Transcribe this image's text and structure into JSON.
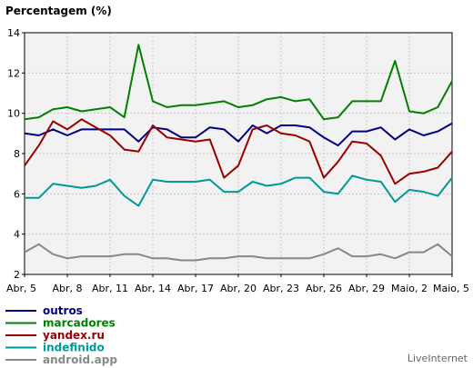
{
  "chart_data": {
    "type": "line",
    "title": "Percentagem (%)",
    "xlabel": "",
    "ylabel": "",
    "ylim": [
      2,
      14
    ],
    "yticks": [
      2,
      4,
      6,
      8,
      10,
      12,
      14
    ],
    "grid": true,
    "legend_position": "bottom-left",
    "x_tick_labels": [
      "Abr, 5",
      "Abr, 8",
      "Abr, 11",
      "Abr, 14",
      "Abr, 17",
      "Abr, 20",
      "Abr, 23",
      "Abr, 26",
      "Abr, 29",
      "Maio, 2",
      "Maio, 5"
    ],
    "series": [
      {
        "name": "outros",
        "color": "#000080",
        "values": [
          9.0,
          8.9,
          9.2,
          8.9,
          9.2,
          9.2,
          9.2,
          9.2,
          8.6,
          9.3,
          9.2,
          8.8,
          8.8,
          9.3,
          9.2,
          8.6,
          9.4,
          9.0,
          9.4,
          9.4,
          9.3,
          8.8,
          8.4,
          9.1,
          9.1,
          9.3,
          8.7,
          9.2,
          8.9,
          9.1,
          9.5
        ]
      },
      {
        "name": "marcadores",
        "color": "#008000",
        "values": [
          9.7,
          9.8,
          10.2,
          10.3,
          10.1,
          10.2,
          10.3,
          9.8,
          13.4,
          10.6,
          10.3,
          10.4,
          10.4,
          10.5,
          10.6,
          10.3,
          10.4,
          10.7,
          10.8,
          10.6,
          10.7,
          9.7,
          9.8,
          10.6,
          10.6,
          10.6,
          12.6,
          10.1,
          10.0,
          10.3,
          11.6
        ]
      },
      {
        "name": "yandex.ru",
        "color": "#990000",
        "values": [
          7.4,
          8.4,
          9.6,
          9.2,
          9.7,
          9.3,
          8.9,
          8.2,
          8.1,
          9.4,
          8.8,
          8.7,
          8.6,
          8.7,
          6.8,
          7.4,
          9.2,
          9.4,
          9.0,
          8.9,
          8.6,
          6.8,
          7.6,
          8.6,
          8.5,
          7.9,
          6.5,
          7.0,
          7.1,
          7.3,
          8.1
        ]
      },
      {
        "name": "indefinido",
        "color": "#009999",
        "values": [
          5.8,
          5.8,
          6.5,
          6.4,
          6.3,
          6.4,
          6.7,
          5.9,
          5.4,
          6.7,
          6.6,
          6.6,
          6.6,
          6.7,
          6.1,
          6.1,
          6.6,
          6.4,
          6.5,
          6.8,
          6.8,
          6.1,
          6.0,
          6.9,
          6.7,
          6.6,
          5.6,
          6.2,
          6.1,
          5.9,
          6.8
        ]
      },
      {
        "name": "android.app",
        "color": "#888888",
        "values": [
          3.1,
          3.5,
          3.0,
          2.8,
          2.9,
          2.9,
          2.9,
          3.0,
          3.0,
          2.8,
          2.8,
          2.7,
          2.7,
          2.8,
          2.8,
          2.9,
          2.9,
          2.8,
          2.8,
          2.8,
          2.8,
          3.0,
          3.3,
          2.9,
          2.9,
          3.0,
          2.8,
          3.1,
          3.1,
          3.5,
          2.9
        ]
      }
    ]
  },
  "watermark": "LiveInternet"
}
